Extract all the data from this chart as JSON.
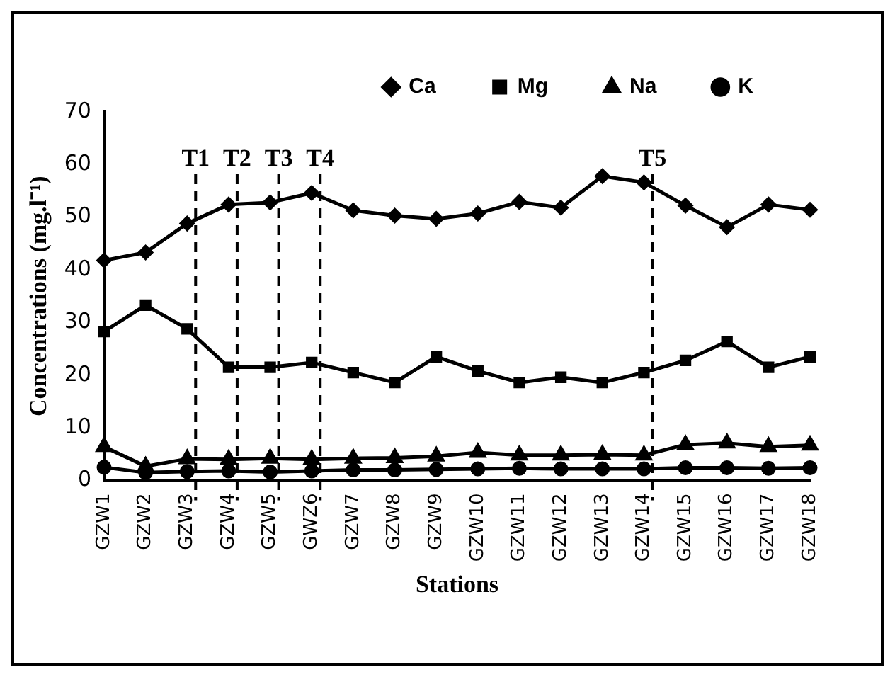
{
  "chart_data": {
    "type": "line",
    "xlabel": "Stations",
    "ylabel": "Concentrations (mg.l⁻¹)",
    "categories": [
      "GZW1",
      "GZW2",
      "GZW3",
      "GZW4",
      "GZW5",
      "GWZ6",
      "GZW7",
      "GZW8",
      "GZW9",
      "GZW10",
      "GZW11",
      "GZW12",
      "GZW13",
      "GZW14",
      "GZW15",
      "GZW16",
      "GZW17",
      "GZW18"
    ],
    "series": [
      {
        "name": "Ca",
        "color": "#000000",
        "marker": "diamond",
        "values": [
          41.8,
          43.3,
          48.8,
          52.4,
          52.8,
          54.6,
          51.3,
          50.3,
          49.7,
          50.7,
          52.9,
          51.8,
          57.8,
          56.6,
          52.2,
          48.1,
          52.4,
          51.4
        ]
      },
      {
        "name": "Mg",
        "color": "#000000",
        "marker": "square",
        "values": [
          28.3,
          33.3,
          28.8,
          21.5,
          21.5,
          22.4,
          20.5,
          18.6,
          23.5,
          20.8,
          18.6,
          19.6,
          18.6,
          20.5,
          22.8,
          26.4,
          21.5,
          23.5
        ]
      },
      {
        "name": "Na",
        "color": "#000000",
        "marker": "triangle",
        "values": [
          6.4,
          2.7,
          4.1,
          4.0,
          4.2,
          4.0,
          4.2,
          4.3,
          4.6,
          5.3,
          4.8,
          4.8,
          4.9,
          4.8,
          6.8,
          7.1,
          6.4,
          6.7
        ]
      },
      {
        "name": "K",
        "color": "#000000",
        "marker": "circle",
        "values": [
          2.5,
          1.5,
          1.7,
          1.8,
          1.6,
          1.8,
          2.0,
          2.0,
          2.1,
          2.2,
          2.3,
          2.2,
          2.2,
          2.2,
          2.4,
          2.4,
          2.3,
          2.4
        ]
      }
    ],
    "ylim": [
      0,
      70
    ],
    "yticks": [
      0,
      10,
      20,
      30,
      40,
      50,
      60,
      70
    ],
    "grid": false,
    "legend": "top",
    "line_style": "solid",
    "ref_lines": [
      {
        "axis": "x",
        "value": "GZW3",
        "label": "T1",
        "line_style": "dashed"
      },
      {
        "axis": "x",
        "value": "GZW4",
        "label": "T2",
        "line_style": "dashed"
      },
      {
        "axis": "x",
        "value": "GZW5",
        "label": "T3",
        "line_style": "dashed"
      },
      {
        "axis": "x",
        "value": "GWZ6",
        "label": "T4",
        "line_style": "dashed"
      },
      {
        "axis": "x",
        "value": "GZW14",
        "label": "T5",
        "line_style": "dashed"
      }
    ]
  }
}
